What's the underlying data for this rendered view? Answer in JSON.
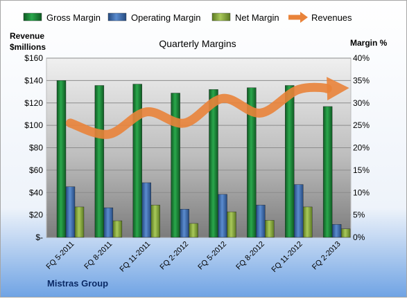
{
  "chart_data": {
    "type": "bar",
    "title": "Quarterly Margins",
    "company": "Mistras Group",
    "ylabel_left": [
      "Revenue",
      "$millions"
    ],
    "ylabel_right": "Margin %",
    "categories": [
      "FQ 5-2011",
      "FQ 8-2011",
      "FQ 11-2011",
      "FQ 2-2012",
      "FQ 5-2012",
      "FQ 8-2012",
      "FQ 11-2012",
      "FQ 2-2013"
    ],
    "left_ticks": [
      "$-",
      "$20",
      "$40",
      "$60",
      "$80",
      "$100",
      "$120",
      "$140",
      "$160"
    ],
    "right_ticks": [
      "0%",
      "5%",
      "10%",
      "15%",
      "20%",
      "25%",
      "30%",
      "35%",
      "40%"
    ],
    "ylim_left": [
      0,
      160
    ],
    "ylim_right": [
      0,
      40
    ],
    "grid": true,
    "legend_position": "top",
    "series": [
      {
        "name": "Gross Margin",
        "axis": "right",
        "color": "#1f8a3c",
        "values": [
          35.0,
          33.9,
          34.2,
          32.2,
          33.0,
          33.4,
          33.9,
          29.2
        ]
      },
      {
        "name": "Operating Margin",
        "axis": "right",
        "color": "#3f6fb5",
        "values": [
          11.3,
          6.6,
          12.2,
          6.3,
          9.6,
          7.2,
          11.8,
          2.9
        ]
      },
      {
        "name": "Net Margin",
        "axis": "right",
        "color": "#8aac3c",
        "values": [
          6.8,
          3.7,
          7.2,
          3.1,
          5.7,
          3.8,
          6.8,
          1.9
        ]
      },
      {
        "name": "Revenues",
        "axis": "left",
        "type": "line",
        "color": "#e9833a",
        "values": [
          102,
          92,
          112,
          102,
          124,
          111,
          132,
          133
        ]
      }
    ]
  }
}
